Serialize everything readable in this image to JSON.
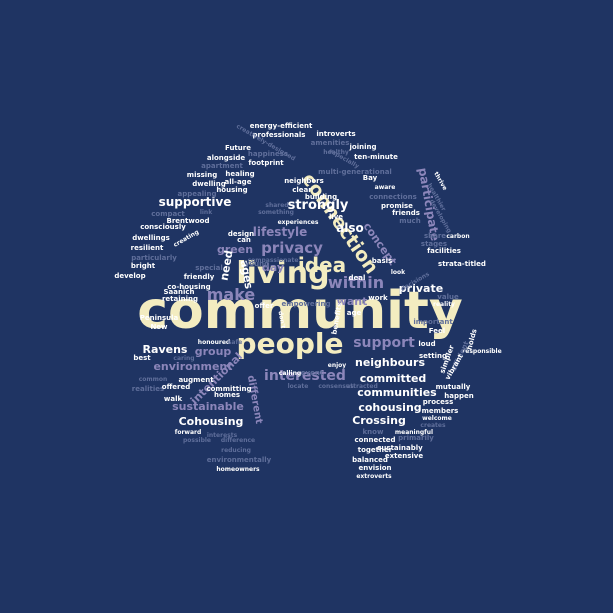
{
  "colors": {
    "background": "#1f3463",
    "cream": "#f3ecc0",
    "lavender": "#8c86ba",
    "white": "#ffffff",
    "slate": "#5f6e9a"
  },
  "words": [
    {
      "text": "community",
      "color": "cream"
    },
    {
      "text": "people",
      "color": "cream"
    },
    {
      "text": "living",
      "color": "cream"
    },
    {
      "text": "idea",
      "color": "cream"
    },
    {
      "text": "connection",
      "color": "cream"
    },
    {
      "text": "privacy",
      "color": "lavender"
    },
    {
      "text": "support",
      "color": "lavender"
    },
    {
      "text": "interested",
      "color": "lavender"
    },
    {
      "text": "within",
      "color": "lavender"
    },
    {
      "text": "make",
      "color": "lavender"
    },
    {
      "text": "strongly",
      "color": "white"
    },
    {
      "text": "supportive",
      "color": "white"
    },
    {
      "text": "lifestyle",
      "color": "lavender"
    },
    {
      "text": "concept",
      "color": "lavender"
    },
    {
      "text": "participate",
      "color": "lavender"
    },
    {
      "text": "also",
      "color": "white"
    },
    {
      "text": "private",
      "color": "white"
    },
    {
      "text": "want",
      "color": "lavender"
    },
    {
      "text": "neighbours",
      "color": "white"
    },
    {
      "text": "committed",
      "color": "white"
    },
    {
      "text": "communities",
      "color": "white"
    },
    {
      "text": "cohousing",
      "color": "white"
    },
    {
      "text": "Crossing",
      "color": "white"
    },
    {
      "text": "Cohousing",
      "color": "white"
    },
    {
      "text": "Ravens",
      "color": "white"
    },
    {
      "text": "environment",
      "color": "lavender"
    },
    {
      "text": "sustainable",
      "color": "lavender"
    },
    {
      "text": "group",
      "color": "lavender"
    },
    {
      "text": "intentional",
      "color": "lavender"
    },
    {
      "text": "different",
      "color": "lavender"
    },
    {
      "text": "green",
      "color": "lavender"
    },
    {
      "text": "ages",
      "color": "white"
    },
    {
      "text": "need",
      "color": "white"
    },
    {
      "text": "day",
      "color": "lavender"
    },
    {
      "text": "energy-efficient",
      "color": "white"
    },
    {
      "text": "introverts",
      "color": "white"
    },
    {
      "text": "professionals",
      "color": "white"
    },
    {
      "text": "creatively-designed",
      "color": "slate"
    },
    {
      "text": "amenities",
      "color": "slate"
    },
    {
      "text": "joining",
      "color": "white"
    },
    {
      "text": "happiness",
      "color": "slate"
    },
    {
      "text": "Future",
      "color": "white"
    },
    {
      "text": "footprint",
      "color": "white"
    },
    {
      "text": "alongside",
      "color": "white"
    },
    {
      "text": "apartment",
      "color": "slate"
    },
    {
      "text": "healing",
      "color": "white"
    },
    {
      "text": "missing",
      "color": "white"
    },
    {
      "text": "all-age",
      "color": "white"
    },
    {
      "text": "dwelling",
      "color": "white"
    },
    {
      "text": "housing",
      "color": "white"
    },
    {
      "text": "appealing",
      "color": "slate"
    },
    {
      "text": "healthy",
      "color": "slate"
    },
    {
      "text": "especially",
      "color": "slate"
    },
    {
      "text": "ten-minute",
      "color": "white"
    },
    {
      "text": "multi-generational",
      "color": "slate"
    },
    {
      "text": "Bay",
      "color": "white"
    },
    {
      "text": "neighbors",
      "color": "white"
    },
    {
      "text": "clear",
      "color": "white"
    },
    {
      "text": "building",
      "color": "white"
    },
    {
      "text": "aware",
      "color": "white"
    },
    {
      "text": "connections",
      "color": "slate"
    },
    {
      "text": "promise",
      "color": "white"
    },
    {
      "text": "friends",
      "color": "white"
    },
    {
      "text": "much",
      "color": "slate"
    },
    {
      "text": "live",
      "color": "white"
    },
    {
      "text": "experiences",
      "color": "white"
    },
    {
      "text": "something",
      "color": "slate"
    },
    {
      "text": "shared",
      "color": "slate"
    },
    {
      "text": "link",
      "color": "slate"
    },
    {
      "text": "compact",
      "color": "slate"
    },
    {
      "text": "Brentwood",
      "color": "white"
    },
    {
      "text": "consciously",
      "color": "white"
    },
    {
      "text": "dwellings",
      "color": "white"
    },
    {
      "text": "creating",
      "color": "white"
    },
    {
      "text": "particularly",
      "color": "slate"
    },
    {
      "text": "bright",
      "color": "white"
    },
    {
      "text": "develop",
      "color": "white"
    },
    {
      "text": "resilient",
      "color": "white"
    },
    {
      "text": "design",
      "color": "white"
    },
    {
      "text": "can",
      "color": "white"
    },
    {
      "text": "basis",
      "color": "white"
    },
    {
      "text": "look",
      "color": "white"
    },
    {
      "text": "decisions",
      "color": "slate"
    },
    {
      "text": "share",
      "color": "slate"
    },
    {
      "text": "carbon",
      "color": "white"
    },
    {
      "text": "stages",
      "color": "slate"
    },
    {
      "text": "facilities",
      "color": "white"
    },
    {
      "text": "strata-titled",
      "color": "white"
    },
    {
      "text": "thrive",
      "color": "white"
    },
    {
      "text": "healthier",
      "color": "slate"
    },
    {
      "text": "developing",
      "color": "slate"
    },
    {
      "text": "special",
      "color": "slate"
    },
    {
      "text": "friendly",
      "color": "white"
    },
    {
      "text": "co-housing",
      "color": "white"
    },
    {
      "text": "Saanich",
      "color": "white"
    },
    {
      "text": "retaining",
      "color": "white"
    },
    {
      "text": "Peninsula",
      "color": "white"
    },
    {
      "text": "New",
      "color": "white"
    },
    {
      "text": "best",
      "color": "white"
    },
    {
      "text": "honoured",
      "color": "white"
    },
    {
      "text": "safe",
      "color": "slate"
    },
    {
      "text": "caring",
      "color": "slate"
    },
    {
      "text": "common",
      "color": "slate"
    },
    {
      "text": "realities",
      "color": "slate"
    },
    {
      "text": "offered",
      "color": "white"
    },
    {
      "text": "augment",
      "color": "white"
    },
    {
      "text": "committing",
      "color": "white"
    },
    {
      "text": "walk",
      "color": "white"
    },
    {
      "text": "homes",
      "color": "white"
    },
    {
      "text": "forward",
      "color": "white"
    },
    {
      "text": "interests",
      "color": "slate"
    },
    {
      "text": "possible",
      "color": "slate"
    },
    {
      "text": "difference",
      "color": "slate"
    },
    {
      "text": "reducing",
      "color": "slate"
    },
    {
      "text": "environmentally",
      "color": "slate"
    },
    {
      "text": "homeowners",
      "color": "white"
    },
    {
      "text": "compassionate",
      "color": "slate"
    },
    {
      "text": "young",
      "color": "slate"
    },
    {
      "text": "deal",
      "color": "white"
    },
    {
      "text": "age",
      "color": "white"
    },
    {
      "text": "work",
      "color": "white"
    },
    {
      "text": "offer",
      "color": "white"
    },
    {
      "text": "don't",
      "color": "white"
    },
    {
      "text": "benefits",
      "color": "white"
    },
    {
      "text": "calling",
      "color": "white"
    },
    {
      "text": "event",
      "color": "slate"
    },
    {
      "text": "enjoy",
      "color": "white"
    },
    {
      "text": "locate",
      "color": "slate"
    },
    {
      "text": "consensus",
      "color": "slate"
    },
    {
      "text": "attracted",
      "color": "slate"
    },
    {
      "text": "value",
      "color": "slate"
    },
    {
      "text": "reality",
      "color": "white"
    },
    {
      "text": "important",
      "color": "slate"
    },
    {
      "text": "Feel",
      "color": "white"
    },
    {
      "text": "loud",
      "color": "white"
    },
    {
      "text": "setting",
      "color": "white"
    },
    {
      "text": "holds",
      "color": "white"
    },
    {
      "text": "responsible",
      "color": "white"
    },
    {
      "text": "efficient",
      "color": "slate"
    },
    {
      "text": "vibrant",
      "color": "white"
    },
    {
      "text": "simpler",
      "color": "white"
    },
    {
      "text": "mutually",
      "color": "white"
    },
    {
      "text": "happen",
      "color": "white"
    },
    {
      "text": "process",
      "color": "white"
    },
    {
      "text": "members",
      "color": "white"
    },
    {
      "text": "welcome",
      "color": "white"
    },
    {
      "text": "creates",
      "color": "slate"
    },
    {
      "text": "know",
      "color": "slate"
    },
    {
      "text": "meaningful",
      "color": "white"
    },
    {
      "text": "primarily",
      "color": "slate"
    },
    {
      "text": "connected",
      "color": "white"
    },
    {
      "text": "sustainably",
      "color": "white"
    },
    {
      "text": "together",
      "color": "white"
    },
    {
      "text": "extensive",
      "color": "white"
    },
    {
      "text": "balanced",
      "color": "white"
    },
    {
      "text": "envision",
      "color": "white"
    },
    {
      "text": "extroverts",
      "color": "white"
    },
    {
      "text": "empowering",
      "color": "slate"
    }
  ]
}
